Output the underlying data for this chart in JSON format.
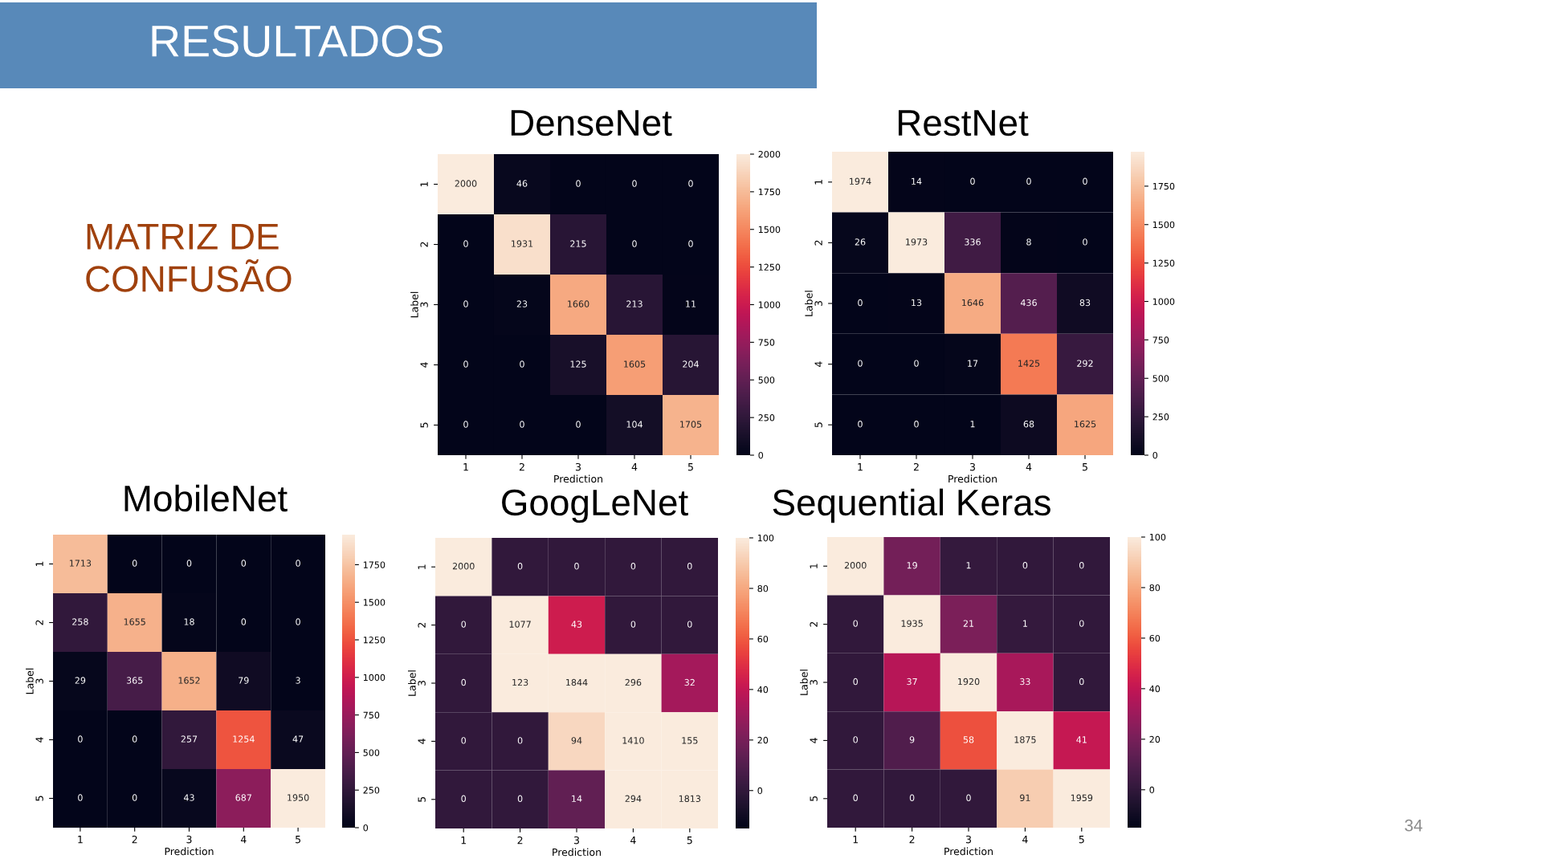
{
  "chart_data": [
    {
      "type": "heatmap",
      "title": "DenseNet",
      "xlabel": "Prediction",
      "ylabel": "Label",
      "categories": [
        "1",
        "2",
        "3",
        "4",
        "5"
      ],
      "y_categories": [
        "1",
        "2",
        "3",
        "4",
        "5"
      ],
      "cells": [
        [
          2000,
          46,
          0,
          0,
          0
        ],
        [
          0,
          1931,
          215,
          0,
          0
        ],
        [
          0,
          23,
          1660,
          213,
          11
        ],
        [
          0,
          0,
          125,
          1605,
          204
        ],
        [
          0,
          0,
          0,
          104,
          1705
        ]
      ],
      "data_labels": true,
      "clim": [
        0,
        2000
      ],
      "cticks": [
        0,
        250,
        500,
        750,
        1000,
        1250,
        1500,
        1750,
        2000
      ],
      "annotations": [
        "RESULTADOS",
        "MATRIZ DE\nCONFUSÃO",
        "34"
      ]
    },
    {
      "type": "heatmap",
      "title": "RestNet",
      "xlabel": "Prediction",
      "ylabel": "Label",
      "categories": [
        "1",
        "2",
        "3",
        "4",
        "5"
      ],
      "y_categories": [
        "1",
        "2",
        "3",
        "4",
        "5"
      ],
      "cells": [
        [
          1974,
          14,
          0,
          0,
          0
        ],
        [
          26,
          1973,
          336,
          8,
          0
        ],
        [
          0,
          13,
          1646,
          436,
          83
        ],
        [
          0,
          0,
          17,
          1425,
          292
        ],
        [
          0,
          0,
          1,
          68,
          1625
        ]
      ],
      "data_labels": true,
      "clim": [
        0,
        1974
      ],
      "cticks": [
        0,
        250,
        500,
        750,
        1000,
        1250,
        1500,
        1750
      ]
    },
    {
      "type": "heatmap",
      "title": "MobileNet",
      "xlabel": "Prediction",
      "ylabel": "Label",
      "categories": [
        "1",
        "2",
        "3",
        "4",
        "5"
      ],
      "y_categories": [
        "1",
        "2",
        "3",
        "4",
        "5"
      ],
      "cells": [
        [
          1713,
          0,
          0,
          0,
          0
        ],
        [
          258,
          1655,
          18,
          0,
          0
        ],
        [
          29,
          365,
          1652,
          79,
          3
        ],
        [
          0,
          0,
          257,
          1254,
          47
        ],
        [
          0,
          0,
          43,
          687,
          1950
        ]
      ],
      "data_labels": true,
      "clim": [
        0,
        1950
      ],
      "cticks": [
        0,
        250,
        500,
        750,
        1000,
        1250,
        1500,
        1750
      ]
    },
    {
      "type": "heatmap",
      "title": "GoogLeNet",
      "xlabel": "Prediction",
      "ylabel": "Label",
      "categories": [
        "1",
        "2",
        "3",
        "4",
        "5"
      ],
      "y_categories": [
        "1",
        "2",
        "3",
        "4",
        "5"
      ],
      "cells": [
        [
          2000,
          0,
          0,
          0,
          0
        ],
        [
          0,
          1077,
          43,
          0,
          0
        ],
        [
          0,
          123,
          1844,
          296,
          32
        ],
        [
          0,
          0,
          94,
          1410,
          155
        ],
        [
          0,
          0,
          14,
          294,
          1813
        ]
      ],
      "data_labels": true,
      "clim": [
        -15,
        100
      ],
      "cticks": [
        0,
        20,
        40,
        60,
        80,
        100
      ]
    },
    {
      "type": "heatmap",
      "title": "Sequential Keras",
      "xlabel": "Prediction",
      "ylabel": "Label",
      "categories": [
        "1",
        "2",
        "3",
        "4",
        "5"
      ],
      "y_categories": [
        "1",
        "2",
        "3",
        "4",
        "5"
      ],
      "cells": [
        [
          2000,
          19,
          1,
          0,
          0
        ],
        [
          0,
          1935,
          21,
          1,
          0
        ],
        [
          0,
          37,
          1920,
          33,
          0
        ],
        [
          0,
          9,
          58,
          1875,
          41
        ],
        [
          0,
          0,
          0,
          91,
          1959
        ]
      ],
      "data_labels": true,
      "clim": [
        -15,
        100
      ],
      "cticks": [
        0,
        20,
        40,
        60,
        80,
        100
      ]
    }
  ]
}
